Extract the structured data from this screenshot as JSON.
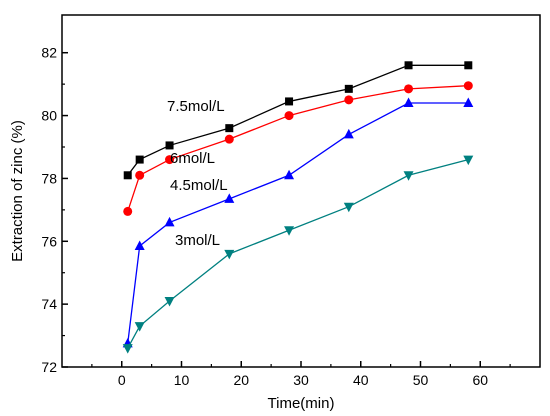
{
  "chart_data": {
    "type": "line",
    "xlabel": "Time(min)",
    "ylabel": "Extraction of zinc (%)",
    "xlim": [
      -10,
      70
    ],
    "ylim": [
      72,
      83.2
    ],
    "x_ticks": [
      0,
      10,
      20,
      30,
      40,
      50,
      60
    ],
    "y_ticks": [
      72,
      74,
      76,
      78,
      80,
      82
    ],
    "grid": false,
    "legend": "none",
    "series": [
      {
        "name": "7.5mol/L",
        "color": "#000000",
        "marker": "square",
        "x": [
          1,
          3,
          8,
          18,
          28,
          38,
          48,
          58
        ],
        "y": [
          78.1,
          78.6,
          79.05,
          79.6,
          80.45,
          80.85,
          81.6,
          81.6
        ]
      },
      {
        "name": "6mol/L",
        "color": "#ff0000",
        "marker": "circle",
        "x": [
          1,
          3,
          8,
          18,
          28,
          38,
          48,
          58
        ],
        "y": [
          76.95,
          78.1,
          78.6,
          79.25,
          80.0,
          80.5,
          80.85,
          80.95
        ]
      },
      {
        "name": "4.5mol/L",
        "color": "#0000ff",
        "marker": "triangle-up",
        "x": [
          1,
          3,
          8,
          18,
          28,
          38,
          48,
          58
        ],
        "y": [
          72.75,
          75.85,
          76.6,
          77.35,
          78.1,
          79.4,
          80.4,
          80.4
        ]
      },
      {
        "name": "3mol/L",
        "color": "#008080",
        "marker": "triangle-down",
        "x": [
          1,
          3,
          8,
          18,
          28,
          38,
          48,
          58
        ],
        "y": [
          72.6,
          73.3,
          74.1,
          75.6,
          76.35,
          77.1,
          78.1,
          78.6
        ]
      }
    ]
  }
}
